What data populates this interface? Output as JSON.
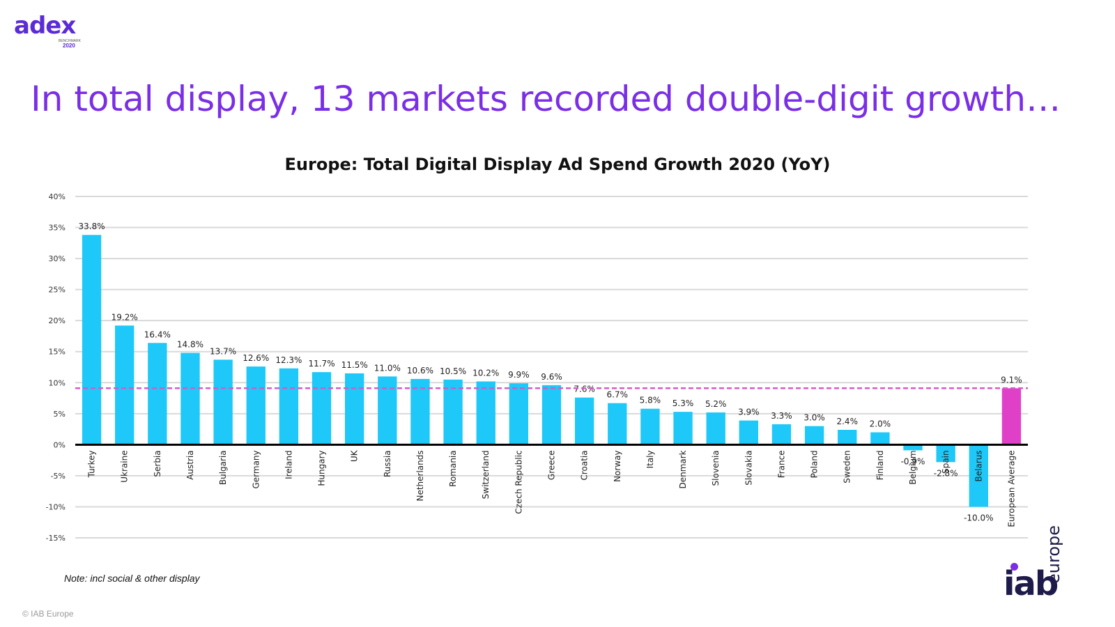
{
  "brand": {
    "adex_word": "adex",
    "adex_sub": "BENCHMARK",
    "adex_year": "2020",
    "iab_word": "iab",
    "iab_europe": "europe"
  },
  "headline": "In total display, 13 markets recorded double-digit growth…",
  "note": "Note: incl social & other display",
  "copyright": "© IAB Europe",
  "colors": {
    "bar": "#1ec8f8",
    "average_bar": "#e040c8",
    "average_line": "#d65ac8",
    "title": "#7a2ee6"
  },
  "chart_data": {
    "type": "bar",
    "title": "Europe: Total Digital Display Ad Spend Growth 2020 (YoY)",
    "xlabel": "",
    "ylabel": "",
    "ylim": [
      -15,
      40
    ],
    "yticks": [
      -15,
      -10,
      -5,
      0,
      5,
      10,
      15,
      20,
      25,
      30,
      35,
      40
    ],
    "ytick_labels": [
      "-15%",
      "-10%",
      "-5%",
      "0%",
      "5%",
      "10%",
      "15%",
      "20%",
      "25%",
      "30%",
      "35%",
      "40%"
    ],
    "grid": true,
    "reference_line": {
      "name": "European Average",
      "value": 9.1
    },
    "categories": [
      "Turkey",
      "Ukraine",
      "Serbia",
      "Austria",
      "Bulgaria",
      "Germany",
      "Ireland",
      "Hungary",
      "UK",
      "Russia",
      "Netherlands",
      "Romania",
      "Switzerland",
      "Czech Republic",
      "Greece",
      "Croatia",
      "Norway",
      "Italy",
      "Denmark",
      "Slovenia",
      "Slovakia",
      "France",
      "Poland",
      "Sweden",
      "Finland",
      "Belgium",
      "Spain",
      "Belarus",
      "European Average"
    ],
    "values": [
      33.8,
      19.2,
      16.4,
      14.8,
      13.7,
      12.6,
      12.3,
      11.7,
      11.5,
      11.0,
      10.6,
      10.5,
      10.2,
      9.9,
      9.6,
      7.6,
      6.7,
      5.8,
      5.3,
      5.2,
      3.9,
      3.3,
      3.0,
      2.4,
      2.0,
      -0.9,
      -2.8,
      -10.0,
      9.1
    ],
    "data_labels": [
      "33.8%",
      "19.2%",
      "16.4%",
      "14.8%",
      "13.7%",
      "12.6%",
      "12.3%",
      "11.7%",
      "11.5%",
      "11.0%",
      "10.6%",
      "10.5%",
      "10.2%",
      "9.9%",
      "9.6%",
      "7.6%",
      "6.7%",
      "5.8%",
      "5.3%",
      "5.2%",
      "3.9%",
      "3.3%",
      "3.0%",
      "2.4%",
      "2.0%",
      "-0.9%",
      "-2.8%",
      "-10.0%",
      "9.1%"
    ],
    "highlight": "European Average"
  }
}
